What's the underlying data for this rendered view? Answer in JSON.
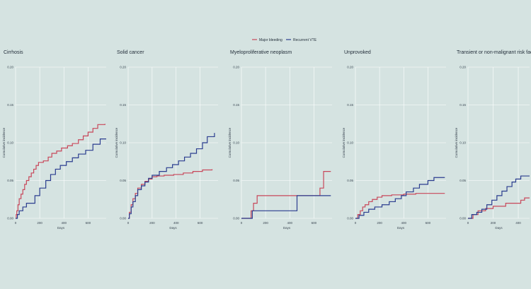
{
  "legend": {
    "items": [
      {
        "label": "Major bleeding",
        "color": "#c8475a"
      },
      {
        "label": "Recurrent VTE",
        "color": "#2b3d8f"
      }
    ]
  },
  "chart_data": [
    {
      "type": "line",
      "title": "Cirrhosis",
      "xlabel": "Days",
      "ylabel": "Cumulative incidence",
      "xlim": [
        0,
        750
      ],
      "ylim": [
        0,
        0.2
      ],
      "xticks": [
        0,
        200,
        400,
        600
      ],
      "yticks": [
        0.0,
        0.05,
        0.1,
        0.15,
        0.2
      ],
      "ytick_labels": [
        "0.00",
        "0.05",
        "0.10",
        "0.15",
        "0.20"
      ],
      "grid": true,
      "series": [
        {
          "name": "Major bleeding",
          "color": "#c8475a",
          "x": [
            0,
            5,
            10,
            20,
            30,
            45,
            60,
            75,
            90,
            110,
            130,
            150,
            170,
            190,
            230,
            270,
            300,
            340,
            380,
            430,
            470,
            520,
            560,
            600,
            640,
            680,
            740
          ],
          "y": [
            0,
            0.005,
            0.01,
            0.018,
            0.026,
            0.032,
            0.038,
            0.045,
            0.05,
            0.055,
            0.06,
            0.065,
            0.07,
            0.074,
            0.076,
            0.081,
            0.086,
            0.089,
            0.093,
            0.096,
            0.099,
            0.104,
            0.109,
            0.114,
            0.119,
            0.124,
            0.125
          ]
        },
        {
          "name": "Recurrent VTE",
          "color": "#2b3d8f",
          "x": [
            0,
            15,
            30,
            60,
            90,
            160,
            200,
            250,
            290,
            330,
            370,
            420,
            470,
            520,
            580,
            640,
            700,
            750
          ],
          "y": [
            0,
            0.005,
            0.01,
            0.015,
            0.02,
            0.03,
            0.04,
            0.05,
            0.058,
            0.065,
            0.07,
            0.075,
            0.08,
            0.085,
            0.09,
            0.098,
            0.105,
            0.105
          ]
        }
      ]
    },
    {
      "type": "line",
      "title": "Solid cancer",
      "xlabel": "Days",
      "ylabel": "Cumulative incidence",
      "xlim": [
        0,
        750
      ],
      "ylim": [
        0,
        0.2
      ],
      "xticks": [
        0,
        200,
        400,
        600
      ],
      "yticks": [
        0.0,
        0.05,
        0.1,
        0.15,
        0.2
      ],
      "ytick_labels": [
        "0.00",
        "0.05",
        "0.10",
        "0.15",
        "0.20"
      ],
      "grid": true,
      "series": [
        {
          "name": "Major bleeding",
          "color": "#c8475a",
          "x": [
            0,
            10,
            25,
            40,
            60,
            80,
            110,
            140,
            170,
            200,
            240,
            300,
            380,
            460,
            540,
            620,
            700
          ],
          "y": [
            0,
            0.008,
            0.018,
            0.026,
            0.033,
            0.04,
            0.045,
            0.049,
            0.052,
            0.055,
            0.056,
            0.057,
            0.058,
            0.06,
            0.062,
            0.064,
            0.065
          ]
        },
        {
          "name": "Recurrent VTE",
          "color": "#2b3d8f",
          "x": [
            0,
            10,
            25,
            40,
            60,
            80,
            110,
            140,
            170,
            200,
            260,
            320,
            370,
            420,
            470,
            520,
            570,
            620,
            660,
            720
          ],
          "y": [
            0,
            0.006,
            0.015,
            0.022,
            0.03,
            0.038,
            0.043,
            0.048,
            0.053,
            0.057,
            0.062,
            0.067,
            0.071,
            0.076,
            0.081,
            0.086,
            0.092,
            0.1,
            0.108,
            0.113
          ]
        }
      ]
    },
    {
      "type": "line",
      "title": "Myeloproliferative neoplasm",
      "xlabel": "Days",
      "ylabel": "Cumulative incidence",
      "xlim": [
        0,
        750
      ],
      "ylim": [
        0,
        0.2
      ],
      "xticks": [
        0,
        200,
        400,
        600
      ],
      "yticks": [
        0.0,
        0.05,
        0.1,
        0.15,
        0.2
      ],
      "ytick_labels": [
        "0.00",
        "0.05",
        "0.10",
        "0.15",
        "0.20"
      ],
      "grid": true,
      "series": [
        {
          "name": "Major bleeding",
          "color": "#c8475a",
          "x": [
            0,
            80,
            100,
            130,
            450,
            650,
            680,
            740
          ],
          "y": [
            0,
            0.01,
            0.02,
            0.03,
            0.03,
            0.04,
            0.062,
            0.062
          ]
        },
        {
          "name": "Recurrent VTE",
          "color": "#2b3d8f",
          "x": [
            0,
            90,
            420,
            460,
            740
          ],
          "y": [
            0,
            0.01,
            0.01,
            0.03,
            0.03
          ]
        }
      ]
    },
    {
      "type": "line",
      "title": "Unprovoked",
      "xlabel": "Days",
      "ylabel": "Cumulative incidence",
      "xlim": [
        0,
        750
      ],
      "ylim": [
        0,
        0.2
      ],
      "xticks": [
        0,
        200,
        400,
        600
      ],
      "yticks": [
        0.0,
        0.05,
        0.1,
        0.15,
        0.2
      ],
      "ytick_labels": [
        "0.00",
        "0.05",
        "0.10",
        "0.15",
        "0.20"
      ],
      "grid": true,
      "series": [
        {
          "name": "Major bleeding",
          "color": "#c8475a",
          "x": [
            0,
            20,
            40,
            60,
            80,
            110,
            140,
            180,
            220,
            300,
            400,
            500,
            740
          ],
          "y": [
            0,
            0.005,
            0.01,
            0.015,
            0.018,
            0.022,
            0.025,
            0.028,
            0.03,
            0.031,
            0.032,
            0.033,
            0.033
          ]
        },
        {
          "name": "Recurrent VTE",
          "color": "#2b3d8f",
          "x": [
            0,
            30,
            70,
            110,
            160,
            220,
            280,
            330,
            380,
            420,
            480,
            530,
            600,
            650,
            740
          ],
          "y": [
            0,
            0.004,
            0.008,
            0.012,
            0.015,
            0.018,
            0.022,
            0.026,
            0.03,
            0.035,
            0.04,
            0.045,
            0.05,
            0.054,
            0.054
          ]
        }
      ]
    },
    {
      "type": "line",
      "title": "Transient or non-malignant risk factors",
      "xlabel": "Days",
      "ylabel": "Cumulative incidence",
      "xlim": [
        0,
        490
      ],
      "ylim": [
        0,
        0.2
      ],
      "xticks": [
        0,
        200,
        400
      ],
      "yticks": [
        0.0,
        0.05,
        0.1,
        0.15,
        0.2
      ],
      "ytick_labels": [
        "0.00",
        "0.05",
        "0.10",
        "0.15",
        "0.20"
      ],
      "grid": true,
      "series": [
        {
          "name": "Major bleeding",
          "color": "#c8475a",
          "x": [
            0,
            40,
            80,
            140,
            200,
            300,
            420,
            450,
            490
          ],
          "y": [
            0,
            0.005,
            0.01,
            0.013,
            0.016,
            0.02,
            0.024,
            0.027,
            0.027
          ]
        },
        {
          "name": "Recurrent VTE",
          "color": "#2b3d8f",
          "x": [
            0,
            30,
            70,
            110,
            150,
            190,
            230,
            270,
            310,
            350,
            380,
            420,
            490
          ],
          "y": [
            0,
            0.005,
            0.008,
            0.012,
            0.018,
            0.024,
            0.03,
            0.036,
            0.042,
            0.048,
            0.052,
            0.056,
            0.056
          ]
        }
      ]
    }
  ]
}
